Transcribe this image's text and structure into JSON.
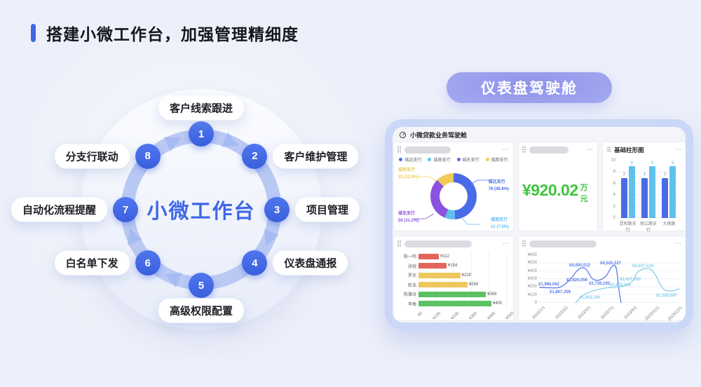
{
  "page": {
    "title": "搭建小微工作台，加强管理精细度",
    "background": "#edf0fa",
    "accent": "#3f66e4"
  },
  "diagram": {
    "center_label": "小微工作台",
    "node_color": "#3f66e4",
    "ring_color": "#bac9f4",
    "nodes": [
      {
        "num": "1",
        "label": "客户线索跟进"
      },
      {
        "num": "2",
        "label": "客户维护管理"
      },
      {
        "num": "3",
        "label": "项目管理"
      },
      {
        "num": "4",
        "label": "仪表盘通报"
      },
      {
        "num": "5",
        "label": "高级权限配置"
      },
      {
        "num": "6",
        "label": "白名单下发"
      },
      {
        "num": "7",
        "label": "自动化流程提醒"
      },
      {
        "num": "8",
        "label": "分支行联动"
      }
    ]
  },
  "dashboard": {
    "badge": "仪表盘驾驶舱",
    "title": "小微贷款业务驾驶舱",
    "panel_menu": "⋯",
    "kpi": {
      "value": "¥920.02",
      "unit": "万元",
      "color": "#3ec53e"
    }
  },
  "chart_data": [
    {
      "id": "branch-donut",
      "type": "pie",
      "legend_position": "top",
      "slices": [
        {
          "name": "城北支行",
          "value": 78,
          "pct": 48.8,
          "label": "78 (48.8%)",
          "color": "#4a6be8"
        },
        {
          "name": "城南支行",
          "value": 12,
          "pct": 7.5,
          "label": "12 (7.5%)",
          "color": "#5fc0ee"
        },
        {
          "name": "城东支行",
          "value": 50,
          "pct": 31.2,
          "label": "50 (31.2%)",
          "color": "#8b52e0"
        },
        {
          "name": "城西支行",
          "value": 20,
          "pct": 12.5,
          "label": "20 (12.5%)",
          "color": "#f0cb56"
        }
      ]
    },
    {
      "id": "basic-bar",
      "type": "bar",
      "title": "基础柱形图",
      "categories": [
        "昆明路支行",
        "丽江路支行",
        "大理路"
      ],
      "yticks": [
        0,
        2,
        4,
        6,
        8,
        10
      ],
      "ylim": [
        0,
        10
      ],
      "series": [
        {
          "name": "bar-series-1",
          "color": "#4a6be8",
          "values": [
            7,
            7,
            7
          ]
        },
        {
          "name": "bar-series-2",
          "color": "#5fc0ee",
          "values": [
            9,
            9,
            9
          ]
        }
      ]
    },
    {
      "id": "person-hbar",
      "type": "bar",
      "orientation": "horizontal",
      "categories": [
        "陈一鸣",
        "张锐",
        "罗杰",
        "陈浩",
        "陈雅诗",
        "李梅"
      ],
      "values": [
        112,
        154,
        229,
        269,
        369,
        400
      ],
      "value_labels": [
        "¥112",
        "¥154",
        "¥229",
        "¥269",
        "¥369",
        "¥400"
      ],
      "bar_colors": [
        "#e2655b",
        "#e2655b",
        "#eec75e",
        "#eec75e",
        "#5cc164",
        "#5cc164"
      ],
      "xticks": [
        "¥0",
        "¥100",
        "¥200",
        "¥300",
        "¥400",
        "¥500"
      ],
      "xlim": [
        0,
        500
      ]
    },
    {
      "id": "trend-line",
      "type": "line",
      "yticks": [
        "¥600",
        "¥500",
        "¥400",
        "¥300",
        "¥200",
        "¥100",
        "0"
      ],
      "ylim": [
        0,
        600
      ],
      "xticks": [
        "2023/1/1",
        "2023/3/1",
        "2023/5/1",
        "2023/7/1",
        "2023/9/1",
        "2023/11/1",
        "2023/12/1"
      ],
      "series": [
        {
          "name": "line-series-1",
          "color": "#5b7be8",
          "points": [
            [
              0,
              195
            ],
            [
              8,
              190
            ],
            [
              15,
              198
            ],
            [
              22,
              290
            ],
            [
              28,
              420
            ],
            [
              33,
              432
            ],
            [
              38,
              305
            ],
            [
              43,
              287
            ],
            [
              48,
              345
            ],
            [
              52,
              458
            ],
            [
              55,
              438
            ],
            [
              57,
              160
            ],
            [
              58.5,
              0
            ]
          ],
          "labels": [
            {
              "text": "¥1,988,062",
              "x": 7,
              "y": 232
            },
            {
              "text": "¥1,867,359",
              "x": 15,
              "y": 130
            },
            {
              "text": "¥2,626,056",
              "x": 27,
              "y": 278
            },
            {
              "text": "¥4,000,012",
              "x": 29,
              "y": 468
            },
            {
              "text": "¥2,738,195",
              "x": 43,
              "y": 238
            },
            {
              "text": "¥4,520,327",
              "x": 51,
              "y": 495
            }
          ]
        },
        {
          "name": "line-series-2",
          "color": "#87ceec",
          "points": [
            [
              26,
              0
            ],
            [
              31,
              90
            ],
            [
              36,
              135
            ],
            [
              42,
              168
            ],
            [
              48,
              188
            ],
            [
              54,
              198
            ],
            [
              60,
              212
            ],
            [
              66,
              262
            ],
            [
              70,
              380
            ],
            [
              74,
              425
            ],
            [
              79,
              428
            ],
            [
              83,
              350
            ],
            [
              87,
              215
            ],
            [
              90,
              160
            ],
            [
              95,
              152
            ],
            [
              100,
              178
            ]
          ],
          "labels": [
            {
              "text": "¥1,343,784",
              "x": 36,
              "y": 60
            },
            {
              "text": "¥1,603,244",
              "x": 58,
              "y": 225
            },
            {
              "text": "¥2,437,693",
              "x": 65,
              "y": 290
            },
            {
              "text": "¥4,037,534",
              "x": 74,
              "y": 460
            },
            {
              "text": "¥1,530,587",
              "x": 91,
              "y": 92
            }
          ]
        }
      ]
    }
  ]
}
